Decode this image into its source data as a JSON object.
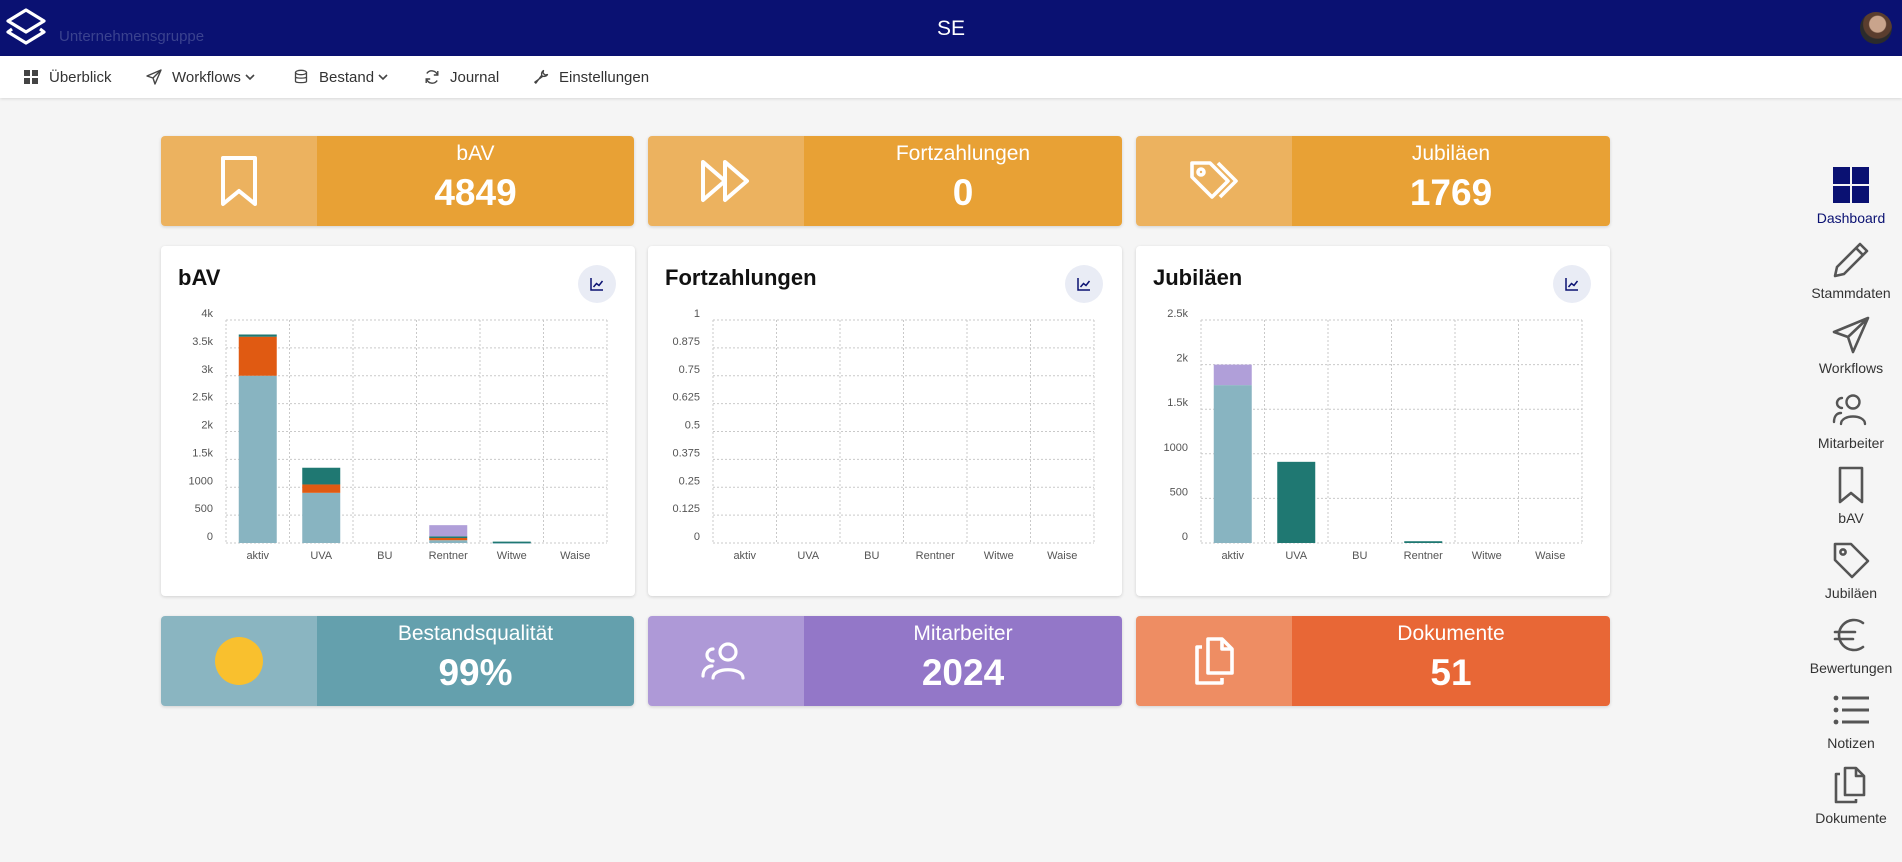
{
  "header": {
    "brand": "Unternehmensgruppe",
    "title": "SE"
  },
  "nav": {
    "items": [
      {
        "label": "Überblick",
        "icon": "grid-icon"
      },
      {
        "label": "Workflows",
        "icon": "send-icon",
        "dropdown": true
      },
      {
        "label": "Bestand",
        "icon": "database-icon",
        "dropdown": true
      },
      {
        "label": "Journal",
        "icon": "refresh-icon"
      },
      {
        "label": "Einstellungen",
        "icon": "wrench-icon"
      }
    ]
  },
  "stats": {
    "bav": {
      "label": "bAV",
      "value": "4849",
      "icon": "bookmark-icon",
      "colors": [
        "#ecb25f",
        "#e8a135"
      ]
    },
    "fortzahlungen": {
      "label": "Fortzahlungen",
      "value": "0",
      "icon": "fast-forward-icon",
      "colors": [
        "#ecb25f",
        "#e8a135"
      ]
    },
    "jubilaeen": {
      "label": "Jubiläen",
      "value": "1769",
      "icon": "tags-icon",
      "colors": [
        "#ecb25f",
        "#e8a135"
      ]
    },
    "bestandsqualitaet": {
      "label": "Bestandsqualität",
      "value": "99%",
      "icon": "sun-icon",
      "colors": [
        "#8ab5c1",
        "#64a0ad"
      ]
    },
    "mitarbeiter": {
      "label": "Mitarbeiter",
      "value": "2024",
      "icon": "users-icon",
      "colors": [
        "#ae99d7",
        "#9377c8"
      ]
    },
    "dokumente": {
      "label": "Dokumente",
      "value": "51",
      "icon": "documents-icon",
      "colors": [
        "#ee8d63",
        "#e86736"
      ]
    }
  },
  "charts": {
    "bav": {
      "title": "bAV"
    },
    "fortzahlungen": {
      "title": "Fortzahlungen"
    },
    "jubilaeen": {
      "title": "Jubiläen"
    }
  },
  "chart_data": [
    {
      "type": "bar",
      "title": "bAV",
      "stacked": true,
      "categories": [
        "aktiv",
        "UVA",
        "BU",
        "Rentner",
        "Witwe",
        "Waise"
      ],
      "yticks": [
        "0",
        "500",
        "1000",
        "1.5k",
        "2k",
        "2.5k",
        "3k",
        "3.5k",
        "4k"
      ],
      "ylim": [
        0,
        4000
      ],
      "grid": true,
      "series": [
        {
          "color": "#88b4c1",
          "values": [
            3000,
            900,
            0,
            50,
            15,
            0
          ]
        },
        {
          "color": "#e05a12",
          "values": [
            700,
            150,
            0,
            40,
            0,
            0
          ]
        },
        {
          "color": "#1f7872",
          "values": [
            40,
            300,
            0,
            30,
            10,
            0
          ]
        },
        {
          "color": "#b09fd9",
          "values": [
            0,
            0,
            0,
            200,
            0,
            0
          ]
        }
      ]
    },
    {
      "type": "bar",
      "title": "Fortzahlungen",
      "stacked": true,
      "categories": [
        "aktiv",
        "UVA",
        "BU",
        "Rentner",
        "Witwe",
        "Waise"
      ],
      "yticks": [
        "0",
        "0.125",
        "0.25",
        "0.375",
        "0.5",
        "0.625",
        "0.75",
        "0.875",
        "1"
      ],
      "ylim": [
        0,
        1
      ],
      "grid": true,
      "series": [
        {
          "color": "#88b4c1",
          "values": [
            0,
            0,
            0,
            0,
            0,
            0
          ]
        }
      ]
    },
    {
      "type": "bar",
      "title": "Jubiläen",
      "stacked": true,
      "categories": [
        "aktiv",
        "UVA",
        "BU",
        "Rentner",
        "Witwe",
        "Waise"
      ],
      "yticks": [
        "0",
        "500",
        "1000",
        "1.5k",
        "2k",
        "2.5k"
      ],
      "ylim": [
        0,
        2500
      ],
      "grid": true,
      "series": [
        {
          "color": "#88b4c1",
          "values": [
            1770,
            0,
            0,
            0,
            0,
            0
          ]
        },
        {
          "color": "#1f7872",
          "values": [
            0,
            910,
            0,
            20,
            0,
            0
          ]
        },
        {
          "color": "#b09fd9",
          "values": [
            230,
            0,
            0,
            0,
            0,
            0
          ]
        }
      ]
    }
  ],
  "sidebar": {
    "items": [
      {
        "label": "Dashboard",
        "icon": "dashboard-icon",
        "active": true
      },
      {
        "label": "Stammdaten",
        "icon": "pencil-icon"
      },
      {
        "label": "Workflows",
        "icon": "send-icon"
      },
      {
        "label": "Mitarbeiter",
        "icon": "users-icon"
      },
      {
        "label": "bAV",
        "icon": "bookmark-icon"
      },
      {
        "label": "Jubiläen",
        "icon": "tag-icon"
      },
      {
        "label": "Bewertungen",
        "icon": "euro-icon"
      },
      {
        "label": "Notizen",
        "icon": "list-icon"
      },
      {
        "label": "Dokumente",
        "icon": "documents-icon"
      }
    ]
  },
  "colors": {
    "header_bg": "#0a1172",
    "accent": "#0a1172",
    "page_bg": "#f5f5f5"
  }
}
